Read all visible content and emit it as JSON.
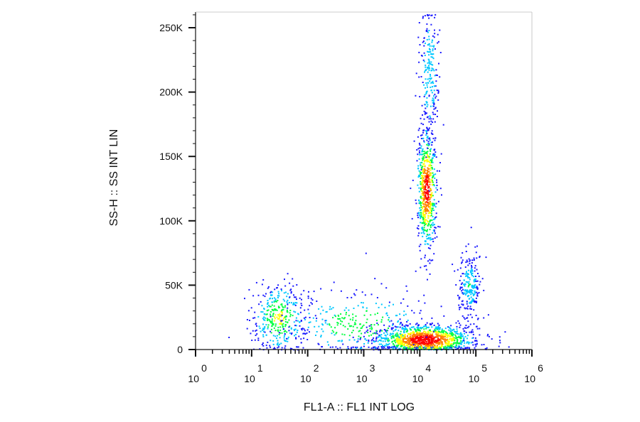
{
  "chart_data": {
    "type": "scatter",
    "subtype": "flow-cytometry density dot plot",
    "xlabel": "FL1-A :: FL1 INT LOG",
    "ylabel": "SS-H :: SS INT LIN",
    "x_scale": "log",
    "xlim": [
      1,
      1000000
    ],
    "ylim": [
      0,
      262144
    ],
    "x_ticks": [
      {
        "base": "10",
        "exp": "0",
        "value": 1
      },
      {
        "base": "10",
        "exp": "1",
        "value": 10
      },
      {
        "base": "10",
        "exp": "2",
        "value": 100
      },
      {
        "base": "10",
        "exp": "3",
        "value": 1000
      },
      {
        "base": "10",
        "exp": "4",
        "value": 10000
      },
      {
        "base": "10",
        "exp": "5",
        "value": 100000
      },
      {
        "base": "10",
        "exp": "6",
        "value": 1000000
      }
    ],
    "y_ticks": [
      {
        "label": "0",
        "value": 0
      },
      {
        "label": "50K",
        "value": 50000
      },
      {
        "label": "100K",
        "value": 100000
      },
      {
        "label": "150K",
        "value": 150000
      },
      {
        "label": "200K",
        "value": 200000
      },
      {
        "label": "250K",
        "value": 250000
      }
    ],
    "grid": false,
    "legend": "none",
    "colormap": [
      "#1a1aff",
      "#00c8ff",
      "#00ff40",
      "#ffff00",
      "#ff8000",
      "#ff0000"
    ],
    "populations": [
      {
        "x_center": 30,
        "y_center": 25000,
        "count": 380,
        "log_x_spread": 0.25,
        "y_spread": 14000
      },
      {
        "x_center": 12000,
        "y_center": 8000,
        "count": 1300,
        "log_x_spread": 0.45,
        "y_spread": 6000
      },
      {
        "x_center": 13000,
        "y_center": 125000,
        "count": 650,
        "log_x_spread": 0.09,
        "y_spread": 25000
      },
      {
        "x_center": 14500,
        "y_center": 215000,
        "count": 230,
        "log_x_spread": 0.09,
        "y_spread": 30000
      },
      {
        "x_center": 75000,
        "y_center": 50000,
        "count": 240,
        "log_x_spread": 0.1,
        "y_spread": 12000
      },
      {
        "x_center": 800,
        "y_center": 20000,
        "count": 320,
        "log_x_spread": 0.7,
        "y_spread": 14000
      }
    ]
  }
}
